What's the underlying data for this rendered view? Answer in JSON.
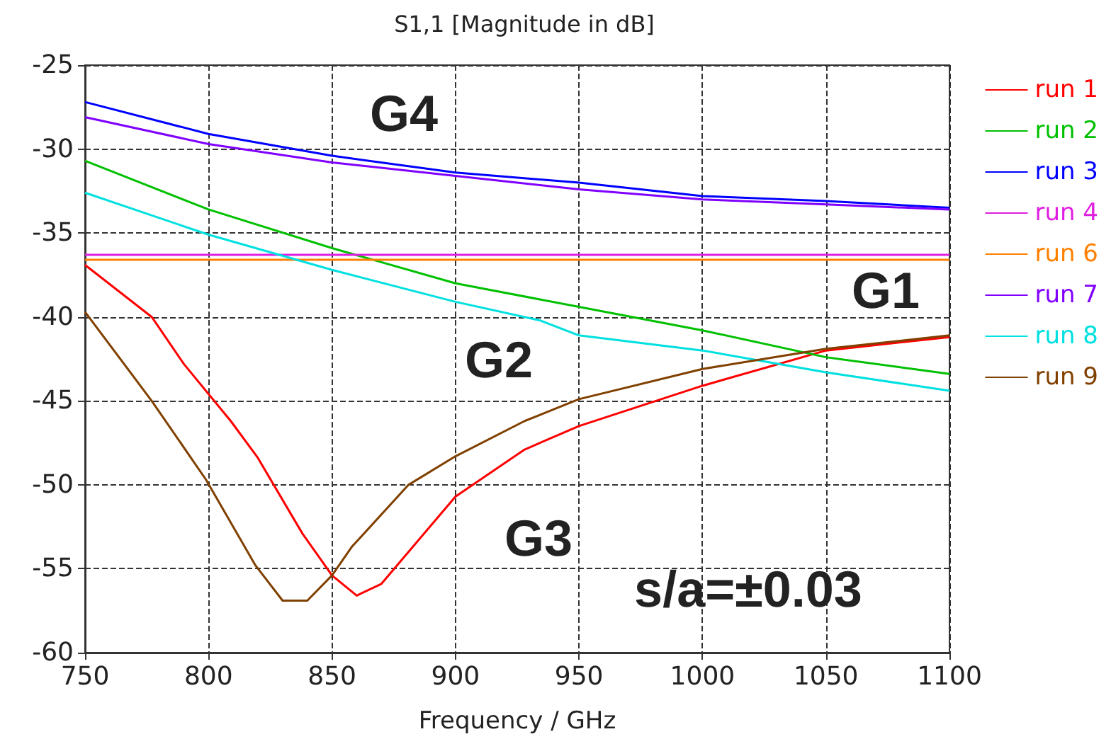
{
  "chart_data": {
    "type": "line",
    "title": "S1,1 [Magnitude in dB]",
    "xlabel": "Frequency / GHz",
    "xlim": [
      750,
      1100
    ],
    "xticks": [
      750,
      800,
      850,
      900,
      950,
      1000,
      1050,
      1100
    ],
    "ylim": [
      -60,
      -25
    ],
    "yticks": [
      -60,
      -55,
      -50,
      -45,
      -40,
      -35,
      -30,
      -25
    ],
    "grid": true,
    "legend": "right",
    "marker": "none",
    "line_style": "solid",
    "series": [
      {
        "name": "run 1",
        "color": "#ff0000",
        "x": [
          750,
          777,
          790,
          809,
          820,
          838,
          850,
          860,
          870,
          900,
          928,
          950,
          1000,
          1050,
          1100
        ],
        "values": [
          -36.9,
          -40.0,
          -42.8,
          -46.2,
          -48.4,
          -52.9,
          -55.4,
          -56.6,
          -55.9,
          -50.7,
          -47.9,
          -46.5,
          -44.1,
          -42.0,
          -41.2
        ]
      },
      {
        "name": "run 2",
        "color": "#00c000",
        "x": [
          750,
          800,
          850,
          900,
          950,
          1000,
          1050,
          1100
        ],
        "values": [
          -30.7,
          -33.6,
          -35.9,
          -38.0,
          -39.4,
          -40.8,
          -42.4,
          -43.4
        ]
      },
      {
        "name": "run 3",
        "color": "#0000ff",
        "x": [
          750,
          800,
          850,
          900,
          950,
          1000,
          1050,
          1100
        ],
        "values": [
          -27.2,
          -29.1,
          -30.4,
          -31.4,
          -32.0,
          -32.8,
          -33.1,
          -33.5
        ]
      },
      {
        "name": "run 4",
        "color": "#e020e0",
        "x": [
          750,
          1100
        ],
        "values": [
          -36.3,
          -36.3
        ]
      },
      {
        "name": "run 6",
        "color": "#ff8000",
        "x": [
          750,
          1100
        ],
        "values": [
          -36.6,
          -36.6
        ]
      },
      {
        "name": "run 7",
        "color": "#8000ff",
        "x": [
          750,
          800,
          850,
          900,
          950,
          1000,
          1050,
          1100
        ],
        "values": [
          -28.1,
          -29.7,
          -30.8,
          -31.6,
          -32.4,
          -33.0,
          -33.3,
          -33.6
        ]
      },
      {
        "name": "run 8",
        "color": "#00e0e0",
        "x": [
          750,
          800,
          850,
          900,
          934,
          950,
          1000,
          1050,
          1100
        ],
        "values": [
          -32.6,
          -35.1,
          -37.2,
          -39.1,
          -40.2,
          -41.1,
          -42.0,
          -43.3,
          -44.4
        ]
      },
      {
        "name": "run 9",
        "color": "#804000",
        "x": [
          750,
          777,
          799,
          819,
          830,
          840,
          850,
          858,
          881,
          900,
          928,
          950,
          1000,
          1050,
          1100
        ],
        "values": [
          -39.7,
          -45.0,
          -49.7,
          -54.8,
          -56.9,
          -56.9,
          -55.4,
          -53.7,
          -50.0,
          -48.3,
          -46.2,
          -44.9,
          -43.1,
          -41.9,
          -41.1
        ]
      }
    ],
    "annotations": [
      "G4",
      "G1",
      "G2",
      "G3",
      "s/a=±0.03"
    ]
  }
}
